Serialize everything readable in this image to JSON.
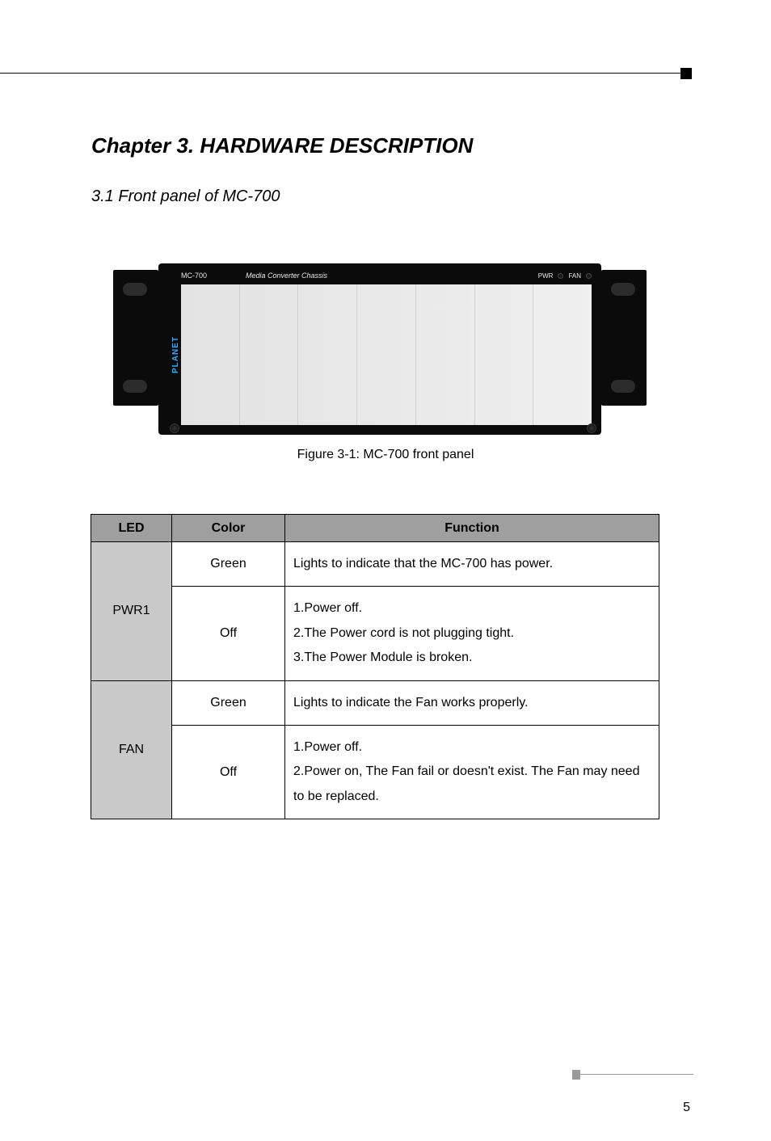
{
  "page": {
    "chapter_title": "Chapter 3.  HARDWARE DESCRIPTION",
    "section_title": "3.1 Front panel of MC-700",
    "figure_caption": "Figure 3-1: MC-700 front panel",
    "footer_page": "5"
  },
  "chassis": {
    "model": "MC-700",
    "title": "Media Converter Chassis",
    "brand": "PLANET",
    "led_labels": {
      "pwr": "PWR",
      "fan": "FAN"
    },
    "bay_count": 7,
    "colors": {
      "frame": "#0b0b0b",
      "bay_bg_from": "#e3e3e3",
      "bay_bg_to": "#efefef",
      "brand_text": "#2aa9ff"
    }
  },
  "led_table": {
    "headers": {
      "led": "LED",
      "color": "Color",
      "function": "Function"
    },
    "rows": [
      {
        "name": "PWR1",
        "states": [
          {
            "color": "Green",
            "function_text": "Lights to indicate that the MC-700 has power."
          },
          {
            "color": "Off",
            "function_text": "1.Power off.\n2.The Power cord is not plugging tight.\n3.The Power Module is broken."
          }
        ]
      },
      {
        "name": "FAN",
        "states": [
          {
            "color": "Green",
            "function_text": "Lights to indicate the Fan works properly."
          },
          {
            "color": "Off",
            "function_text": "1.Power off.\n2.Power on, The Fan fail or doesn't exist. The Fan may need to be replaced."
          }
        ]
      }
    ]
  }
}
